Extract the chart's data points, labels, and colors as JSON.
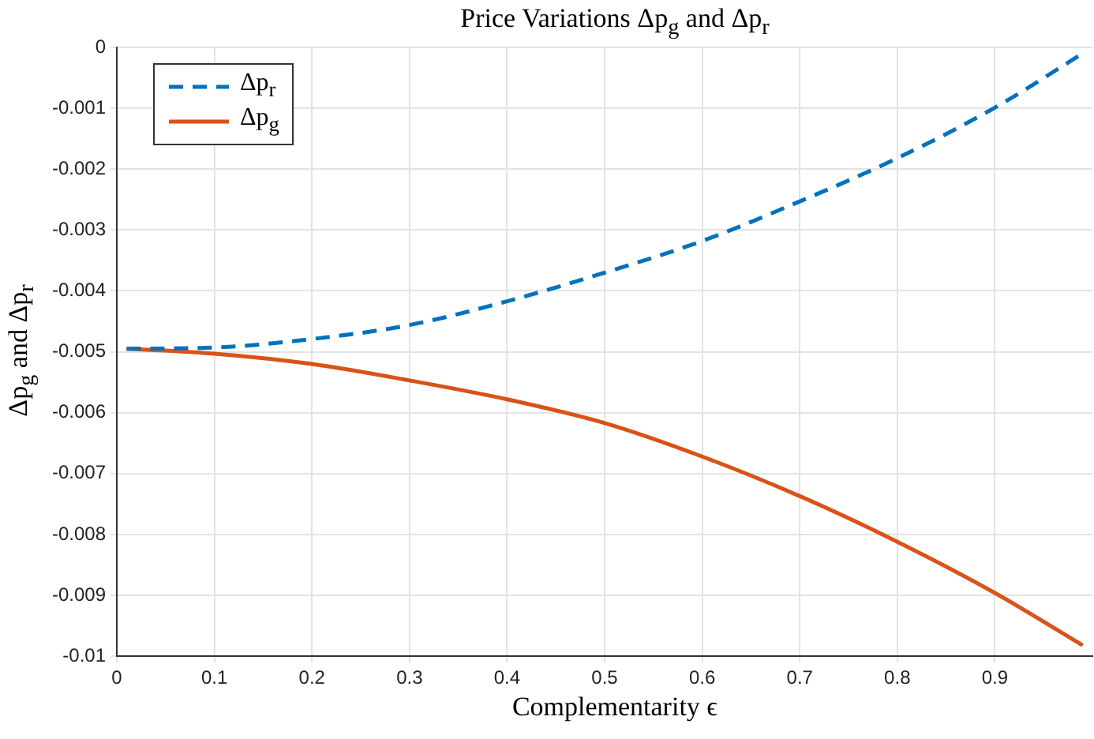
{
  "chart_data": {
    "type": "line",
    "title": "Price Variations Δp$_{g}$ and Δp$_{r}$",
    "xlabel": "Complementarity ϵ",
    "ylabel": "Δp$_{g}$ and Δp$_{r}$",
    "x": [
      0.01,
      0.1,
      0.2,
      0.3,
      0.4,
      0.5,
      0.6,
      0.7,
      0.8,
      0.9,
      0.99
    ],
    "series": [
      {
        "name": "Δp$_{r}$",
        "color": "#0072bd",
        "line_style": "dashed",
        "values": [
          -0.00495,
          -0.00493,
          -0.00479,
          -0.00456,
          -0.00417,
          -0.0037,
          -0.00318,
          -0.00253,
          -0.00182,
          -0.00099,
          -0.0001
        ]
      },
      {
        "name": "Δp$_{g}$",
        "color": "#d95319",
        "line_style": "solid",
        "values": [
          -0.00495,
          -0.00503,
          -0.0052,
          -0.00547,
          -0.00578,
          -0.00617,
          -0.00672,
          -0.00737,
          -0.00812,
          -0.00896,
          -0.00982
        ]
      }
    ],
    "xlim": [
      0,
      1
    ],
    "xticks": [
      0,
      0.1,
      0.2,
      0.3,
      0.4,
      0.5,
      0.6,
      0.7,
      0.8,
      0.9
    ],
    "ylim": [
      -0.01,
      0
    ],
    "yticks": [
      -0.01,
      -0.009,
      -0.008,
      -0.007,
      -0.006,
      -0.005,
      -0.004,
      -0.003,
      -0.002,
      -0.001,
      0
    ],
    "grid": true,
    "legend": "top left",
    "marker": "none"
  }
}
